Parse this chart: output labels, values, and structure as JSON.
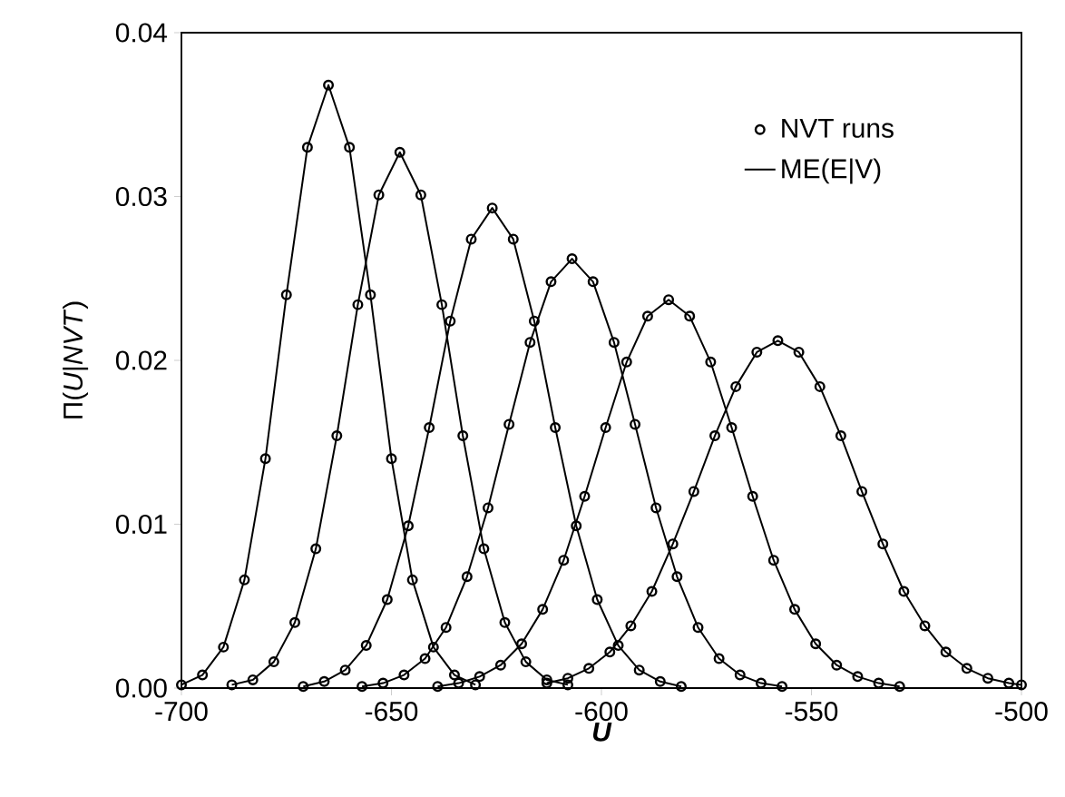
{
  "chart_data": {
    "type": "line",
    "xlabel": "U",
    "ylabel": "Π(*U*|*NVT*)",
    "xlim": [
      -700,
      -500
    ],
    "xticks": [
      -700,
      -650,
      -600,
      -550,
      -500
    ],
    "ylim": [
      0,
      0.04
    ],
    "yticks": [
      {
        "value": 0,
        "label": "0.00"
      },
      {
        "value": 0.01,
        "label": "0.01"
      },
      {
        "value": 0.02,
        "label": "0.02"
      },
      {
        "value": 0.03,
        "label": "0.03"
      },
      {
        "value": 0.04,
        "label": "0.04"
      }
    ],
    "legend": "top right",
    "grid": false,
    "series": [
      {
        "type": "scatter",
        "marker": "circle",
        "name": "NVT runs",
        "color": "#000000",
        "x": [
          -700,
          -695,
          -690,
          -685,
          -680,
          -675,
          -670,
          -665,
          -660,
          -655,
          -650,
          -645,
          -640,
          -635,
          -630
        ],
        "values": [
          0.0002,
          0.0008,
          0.0025,
          0.0066,
          0.014,
          0.024,
          0.033,
          0.0368,
          0.033,
          0.024,
          0.014,
          0.0066,
          0.0025,
          0.0008,
          0.0002
        ]
      },
      {
        "type": "scatter",
        "marker": "circle",
        "color": "#000000",
        "x": [
          -688,
          -683,
          -678,
          -673,
          -668,
          -663,
          -658,
          -653,
          -648,
          -643,
          -638,
          -633,
          -628,
          -623,
          -618,
          -613,
          -608
        ],
        "values": [
          0.0002,
          0.0005,
          0.0016,
          0.004,
          0.0085,
          0.0154,
          0.0234,
          0.0301,
          0.0327,
          0.0301,
          0.0234,
          0.0154,
          0.0085,
          0.004,
          0.0016,
          0.0005,
          0.0002
        ]
      },
      {
        "type": "scatter",
        "marker": "circle",
        "color": "#000000",
        "x": [
          -671,
          -666,
          -661,
          -656,
          -651,
          -646,
          -641,
          -636,
          -631,
          -626,
          -621,
          -616,
          -611,
          -606,
          -601,
          -596,
          -591,
          -586,
          -581
        ],
        "values": [
          0.0001,
          0.0004,
          0.0011,
          0.0026,
          0.0054,
          0.0099,
          0.0159,
          0.0224,
          0.0274,
          0.0293,
          0.0274,
          0.0224,
          0.0159,
          0.0099,
          0.0054,
          0.0026,
          0.0011,
          0.0004,
          0.0001
        ]
      },
      {
        "type": "scatter",
        "marker": "circle",
        "color": "#000000",
        "x": [
          -657,
          -652,
          -647,
          -642,
          -637,
          -632,
          -627,
          -622,
          -617,
          -612,
          -607,
          -602,
          -597,
          -592,
          -587,
          -582,
          -577,
          -572,
          -567,
          -562,
          -557
        ],
        "values": [
          0.0001,
          0.0003,
          0.0008,
          0.0018,
          0.0037,
          0.0068,
          0.011,
          0.0161,
          0.0211,
          0.0248,
          0.0262,
          0.0248,
          0.0211,
          0.0161,
          0.011,
          0.0068,
          0.0037,
          0.0018,
          0.0008,
          0.0003,
          0.0001
        ]
      },
      {
        "type": "scatter",
        "marker": "circle",
        "color": "#000000",
        "x": [
          -639,
          -634,
          -629,
          -624,
          -619,
          -614,
          -609,
          -604,
          -599,
          -594,
          -589,
          -584,
          -579,
          -574,
          -569,
          -564,
          -559,
          -554,
          -549,
          -544,
          -539,
          -534,
          -529
        ],
        "values": [
          0.0001,
          0.0003,
          0.0007,
          0.0014,
          0.0027,
          0.0048,
          0.0078,
          0.0117,
          0.0159,
          0.0199,
          0.0227,
          0.0237,
          0.0227,
          0.0199,
          0.0159,
          0.0117,
          0.0078,
          0.0048,
          0.0027,
          0.0014,
          0.0007,
          0.0003,
          0.0001
        ]
      },
      {
        "type": "scatter",
        "marker": "circle",
        "color": "#000000",
        "x": [
          -613,
          -608,
          -603,
          -598,
          -593,
          -588,
          -583,
          -578,
          -573,
          -568,
          -563,
          -558,
          -553,
          -548,
          -543,
          -538,
          -533,
          -528,
          -523,
          -518,
          -513,
          -508,
          -503,
          -500
        ],
        "values": [
          0.0003,
          0.0006,
          0.0012,
          0.0022,
          0.0038,
          0.0059,
          0.0088,
          0.012,
          0.0154,
          0.0184,
          0.0205,
          0.0212,
          0.0205,
          0.0184,
          0.0154,
          0.012,
          0.0088,
          0.0059,
          0.0038,
          0.0022,
          0.0012,
          0.0006,
          0.0003,
          0.0002
        ]
      },
      {
        "marker": "none",
        "name": "ME(E|V)",
        "color": "#000000",
        "x": [
          -700,
          -695,
          -690,
          -685,
          -680,
          -675,
          -670,
          -665,
          -660,
          -655,
          -650,
          -645,
          -640,
          -635,
          -630
        ],
        "values": [
          0.0002,
          0.0008,
          0.0025,
          0.0066,
          0.014,
          0.024,
          0.033,
          0.0368,
          0.033,
          0.024,
          0.014,
          0.0066,
          0.0025,
          0.0008,
          0.0002
        ]
      },
      {
        "type": "line",
        "marker": "none",
        "color": "#000000",
        "x": [
          -688,
          -683,
          -678,
          -673,
          -668,
          -663,
          -658,
          -653,
          -648,
          -643,
          -638,
          -633,
          -628,
          -623,
          -618,
          -613,
          -608
        ],
        "values": [
          0.0002,
          0.0005,
          0.0016,
          0.004,
          0.0085,
          0.0154,
          0.0234,
          0.0301,
          0.0327,
          0.0301,
          0.0234,
          0.0154,
          0.0085,
          0.004,
          0.0016,
          0.0005,
          0.0002
        ]
      },
      {
        "type": "line",
        "marker": "none",
        "color": "#000000",
        "x": [
          -671,
          -666,
          -661,
          -656,
          -651,
          -646,
          -641,
          -636,
          -631,
          -626,
          -621,
          -616,
          -611,
          -606,
          -601,
          -596,
          -591,
          -586,
          -581
        ],
        "values": [
          0.0001,
          0.0004,
          0.0011,
          0.0026,
          0.0054,
          0.0099,
          0.0159,
          0.0224,
          0.0274,
          0.0293,
          0.0274,
          0.0224,
          0.0159,
          0.0099,
          0.0054,
          0.0026,
          0.0011,
          0.0004,
          0.0001
        ]
      },
      {
        "type": "line",
        "marker": "none",
        "color": "#000000",
        "x": [
          -657,
          -652,
          -647,
          -642,
          -637,
          -632,
          -627,
          -622,
          -617,
          -612,
          -607,
          -602,
          -597,
          -592,
          -587,
          -582,
          -577,
          -572,
          -567,
          -562,
          -557
        ],
        "values": [
          0.0001,
          0.0003,
          0.0008,
          0.0018,
          0.0037,
          0.0068,
          0.011,
          0.0161,
          0.0211,
          0.0248,
          0.0262,
          0.0248,
          0.0211,
          0.0161,
          0.011,
          0.0068,
          0.0037,
          0.0018,
          0.0008,
          0.0003,
          0.0001
        ]
      },
      {
        "type": "line",
        "marker": "none",
        "color": "#000000",
        "x": [
          -639,
          -634,
          -629,
          -624,
          -619,
          -614,
          -609,
          -604,
          -599,
          -594,
          -589,
          -584,
          -579,
          -574,
          -569,
          -564,
          -559,
          -554,
          -549,
          -544,
          -539,
          -534,
          -529
        ],
        "values": [
          0.0001,
          0.0003,
          0.0007,
          0.0014,
          0.0027,
          0.0048,
          0.0078,
          0.0117,
          0.0159,
          0.0199,
          0.0227,
          0.0237,
          0.0227,
          0.0199,
          0.0159,
          0.0117,
          0.0078,
          0.0048,
          0.0027,
          0.0014,
          0.0007,
          0.0003,
          0.0001
        ]
      },
      {
        "type": "line",
        "marker": "none",
        "color": "#000000",
        "x": [
          -613,
          -608,
          -603,
          -598,
          -593,
          -588,
          -583,
          -578,
          -573,
          -568,
          -563,
          -558,
          -553,
          -548,
          -543,
          -538,
          -533,
          -528,
          -523,
          -518,
          -513,
          -508,
          -503,
          -500
        ],
        "values": [
          0.0003,
          0.0006,
          0.0012,
          0.0022,
          0.0038,
          0.0059,
          0.0088,
          0.012,
          0.0154,
          0.0184,
          0.0205,
          0.0212,
          0.0205,
          0.0184,
          0.0154,
          0.012,
          0.0088,
          0.0059,
          0.0038,
          0.0022,
          0.0012,
          0.0006,
          0.0003,
          0.0002
        ]
      }
    ]
  }
}
